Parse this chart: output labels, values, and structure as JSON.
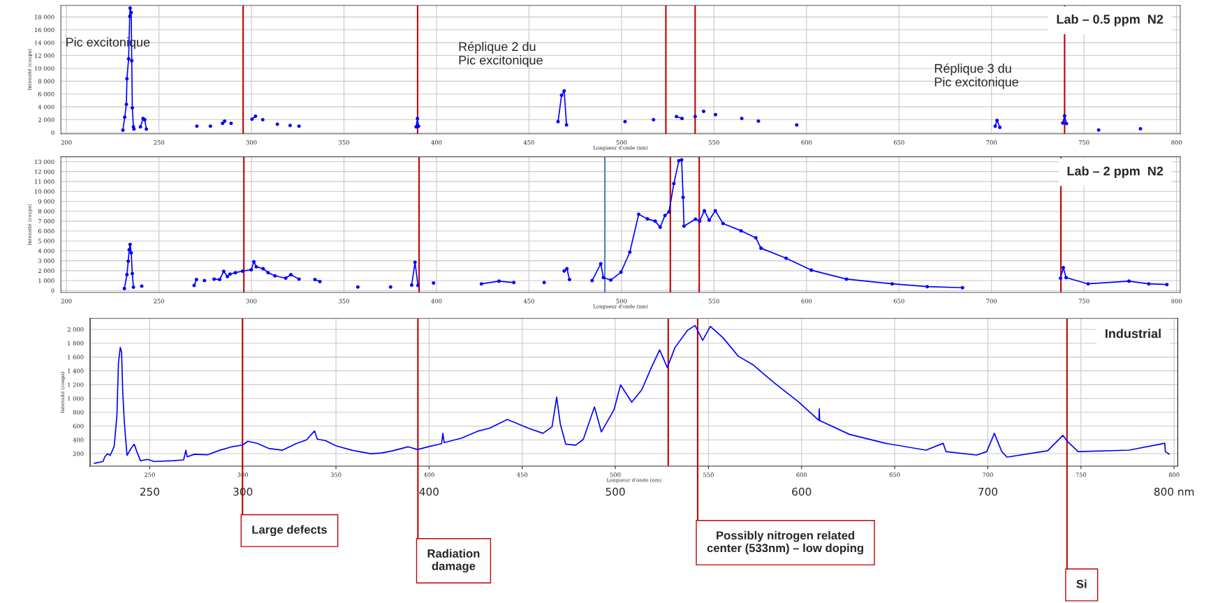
{
  "chart_data": [
    {
      "type": "line",
      "title": "Lab – 0.5 ppm  N2",
      "xlabel": "Longueur d'onde (nm)",
      "ylabel": "Intensité (coups)",
      "marker": "circle",
      "line_style": "solid",
      "grid": true,
      "legend": false,
      "annotations": [
        "Pic excitonique",
        "Réplique 2 du Pic excitonique",
        "Réplique 3 du Pic excitonique"
      ],
      "xlim": [
        197,
        802
      ],
      "ylim": [
        -200,
        19800
      ],
      "xticks": [
        200,
        250,
        300,
        350,
        400,
        450,
        500,
        550,
        600,
        650,
        700,
        750,
        800
      ],
      "yticks": [
        0,
        {
          "value": 2000,
          "label": "2 000"
        },
        {
          "value": 4000,
          "label": "4 000"
        },
        {
          "value": 6000,
          "label": "6 000"
        },
        {
          "value": 8000,
          "label": "8 000"
        },
        {
          "value": 10000,
          "label": "10 000"
        },
        {
          "value": 12000,
          "label": "12 000"
        },
        {
          "value": 14000,
          "label": "14 000"
        },
        {
          "value": 16000,
          "label": "16 000"
        },
        {
          "value": 18000,
          "label": "18 000"
        }
      ],
      "ref_lines": [
        {
          "axis": "x",
          "value": 295.5,
          "color": "#c00000"
        },
        {
          "axis": "x",
          "value": 389.8,
          "color": "#c00000"
        },
        {
          "axis": "x",
          "value": 524,
          "color": "#c00000"
        },
        {
          "axis": "x",
          "value": 539.8,
          "color": "#c00000"
        },
        {
          "axis": "x",
          "value": 739.5,
          "color": "#c00000"
        }
      ],
      "series": [
        {
          "color": "#0000ff",
          "x": [
            230.5,
            231.5,
            232.4,
            232.7,
            233.6,
            234.2,
            234.4,
            235,
            235.3,
            235.6,
            236.2,
            236.5,
            238,
            240,
            241.4,
            242.3,
            243.2,
            250,
            270.5,
            274,
            277.8,
            281,
            284.4,
            285,
            285.5,
            287,
            289,
            295,
            300.3,
            302.2,
            304,
            306.1,
            310,
            314,
            317,
            320.9,
            323,
            325.7,
            350,
            389,
            389.7,
            390.3,
            420,
            465.7,
            467.6,
            469,
            470.3,
            485,
            501.9,
            510,
            517.3,
            525,
            529.7,
            532.7,
            536,
            539.8,
            542,
            544.4,
            547,
            550.8,
            560,
            565,
            570,
            574,
            585,
            594.7,
            650,
            702,
            703,
            704.5,
            720,
            738.5,
            739.5,
            740.5,
            750,
            757.9,
            770,
            780.5
          ],
          "values": [
            370,
            2400,
            4400,
            8400,
            11500,
            18100,
            19400,
            18700,
            11200,
            3850,
            900,
            550,
            null,
            900,
            2200,
            2000,
            550,
            null,
            1000,
            null,
            1000,
            null,
            1450,
            null,
            1800,
            null,
            1450,
            null,
            2100,
            2550,
            null,
            2000,
            null,
            1300,
            null,
            1100,
            null,
            1000,
            null,
            900,
            2200,
            1000,
            null,
            1700,
            5800,
            6500,
            1200,
            null,
            1700,
            null,
            2000,
            null,
            2500,
            2200,
            null,
            2500,
            null,
            3300,
            null,
            2800,
            null,
            2200,
            null,
            1800,
            null,
            1200,
            null,
            1000,
            1900,
            800,
            null,
            1500,
            2600,
            1400,
            null,
            400,
            null,
            600
          ]
        }
      ]
    },
    {
      "type": "line",
      "title": "Lab – 2 ppm  N2",
      "xlabel": "Longueur d'onde (nm)",
      "ylabel": "Intensité (coups)",
      "marker": "circle",
      "line_style": "solid",
      "grid": true,
      "legend": false,
      "xlim": [
        197,
        802
      ],
      "ylim": [
        -200,
        13500
      ],
      "xticks": [
        200,
        250,
        300,
        350,
        400,
        450,
        500,
        550,
        600,
        650,
        700,
        750,
        800
      ],
      "yticks": [
        0,
        {
          "value": 1000,
          "label": "1 000"
        },
        {
          "value": 2000,
          "label": "2 000"
        },
        {
          "value": 3000,
          "label": "3 000"
        },
        {
          "value": 4000,
          "label": "4 000"
        },
        {
          "value": 5000,
          "label": "5 000"
        },
        {
          "value": 6000,
          "label": "6 000"
        },
        {
          "value": 7000,
          "label": "7 000"
        },
        {
          "value": 8000,
          "label": "8 000"
        },
        {
          "value": 9000,
          "label": "9 000"
        },
        {
          "value": 10000,
          "label": "10 000"
        },
        {
          "value": 11000,
          "label": "11 000"
        },
        {
          "value": 12000,
          "label": "12 000"
        },
        {
          "value": 13000,
          "label": "13 000"
        }
      ],
      "ref_lines": [
        {
          "axis": "x",
          "value": 295.9,
          "color": "#c00000"
        },
        {
          "axis": "x",
          "value": 390.6,
          "color": "#c00000"
        },
        {
          "axis": "x",
          "value": 491,
          "color": "#4a7ebb"
        },
        {
          "axis": "x",
          "value": 526.4,
          "color": "#c00000"
        },
        {
          "axis": "x",
          "value": 542,
          "color": "#c00000"
        },
        {
          "axis": "x",
          "value": 737.5,
          "color": "#c00000"
        }
      ],
      "series": [
        {
          "color": "#0000ff",
          "x": [
            231.3,
            232.7,
            233.4,
            233.9,
            234.4,
            235,
            235.6,
            236.2,
            238,
            240.7,
            250,
            269,
            270.3,
            272,
            274.6,
            277,
            279.8,
            282.8,
            285,
            287,
            288.4,
            291.3,
            295.2,
            299.9,
            301.3,
            302.6,
            306.3,
            309,
            312.7,
            318.5,
            321.3,
            325.7,
            330,
            334.3,
            337,
            345,
            357.5,
            365,
            375.2,
            380,
            386.6,
            388.4,
            390,
            395,
            398.4,
            410,
            424.3,
            433.8,
            441.8,
            450,
            458.2,
            465,
            469,
            470.5,
            471.9,
            478,
            484.1,
            488.8,
            490.2,
            494.2,
            499.7,
            504.5,
            509.3,
            514,
            518.2,
            520.9,
            523.5,
            525.7,
            528.3,
            531,
            532.5,
            533.3,
            533.8,
            540,
            542.2,
            544.8,
            547.4,
            550.7,
            554.9,
            564.6,
            572.6,
            575.4,
            589,
            602.6,
            621.6,
            646.3,
            665.3,
            684.3,
            710,
            737.3,
            738.8,
            740.3,
            752.2,
            774.3,
            785,
            794.8
          ],
          "values": [
            200,
            1600,
            2950,
            4100,
            4650,
            3800,
            1700,
            330,
            null,
            430,
            null,
            500,
            1100,
            null,
            1000,
            null,
            1150,
            1100,
            1940,
            1400,
            1650,
            1800,
            1950,
            2100,
            2900,
            2400,
            2200,
            1800,
            1480,
            1250,
            1600,
            1150,
            null,
            1100,
            900,
            null,
            350,
            null,
            350,
            null,
            550,
            2850,
            500,
            null,
            760,
            null,
            670,
            940,
            800,
            null,
            800,
            null,
            1970,
            2200,
            1100,
            null,
            1000,
            2700,
            1300,
            1050,
            1840,
            3870,
            7700,
            7230,
            7000,
            6400,
            7570,
            7950,
            10800,
            13100,
            13200,
            9400,
            6500,
            7200,
            7000,
            8050,
            7100,
            8050,
            6760,
            6030,
            5320,
            4270,
            3250,
            2050,
            1150,
            670,
            390,
            280,
            null,
            1250,
            2300,
            1300,
            670,
            940,
            670,
            600
          ]
        }
      ]
    },
    {
      "type": "line",
      "title": "Industrial",
      "xlabel": "Longueur d'onde (nm)",
      "ylabel": "Intensité (coups)",
      "marker": "none",
      "line_style": "solid",
      "grid": true,
      "legend": false,
      "xlim": [
        218,
        802
      ],
      "ylim": [
        20,
        2160
      ],
      "xticks": [
        250,
        300,
        350,
        400,
        450,
        500,
        550,
        600,
        650,
        700,
        750,
        800
      ],
      "x2lim": [
        218,
        802
      ],
      "x2ticks": [
        250,
        300,
        400,
        500,
        600,
        700,
        {
          "value": 800,
          "label": "800 nm"
        }
      ],
      "yticks": [
        200,
        400,
        600,
        800,
        {
          "value": 1000,
          "label": "1 000"
        },
        {
          "value": 1200,
          "label": "1 200"
        },
        {
          "value": 1400,
          "label": "1 400"
        },
        {
          "value": 1600,
          "label": "1 600"
        },
        {
          "value": 1800,
          "label": "1 800"
        },
        {
          "value": 2000,
          "label": "2 000"
        }
      ],
      "ref_lines": [
        {
          "axis": "x",
          "value": 299.8,
          "label": "Large defects",
          "color": "#c00000"
        },
        {
          "axis": "x",
          "value": 394,
          "label": "Radiation damage",
          "color": "#c00000"
        },
        {
          "axis": "x",
          "value": 528.4,
          "color": "#c00000"
        },
        {
          "axis": "x",
          "value": 544.2,
          "label": "Possibly nitrogen related center (533nm) – low doping",
          "color": "#c00000"
        },
        {
          "axis": "x",
          "value": 742.5,
          "label": "Si",
          "color": "#c00000"
        }
      ],
      "series": [
        {
          "color": "#0000ff",
          "x": [
            220.2,
            224.9,
            225.9,
            227.3,
            228.8,
            230.9,
            232.4,
            233.2,
            234.2,
            234.9,
            235.5,
            236.4,
            237.8,
            240.2,
            241.7,
            243.1,
            245,
            248.9,
            252.4,
            262.5,
            268.2,
            269.4,
            270.1,
            274,
            281.1,
            287.6,
            294,
            299.8,
            302.7,
            307.7,
            314.1,
            321.3,
            328.5,
            334.2,
            338.5,
            340,
            344.3,
            350,
            358.6,
            368.7,
            374.4,
            380.1,
            388.8,
            393.8,
            400.2,
            406.7,
            407.4,
            408.1,
            417.4,
            426,
            432.5,
            442,
            453,
            461.1,
            466,
            468.5,
            470.5,
            473.4,
            478.7,
            482.8,
            488.8,
            492.5,
            499.3,
            502.8,
            508.8,
            514.2,
            519,
            523.8,
            527.9,
            532,
            538.8,
            542.8,
            546.9,
            551,
            557.8,
            565.9,
            574.1,
            585,
            598.5,
            609.3,
            609.5,
            609.7,
            625.7,
            645,
            666.8,
            676,
            677.6,
            694,
            699.4,
            703.5,
            707.5,
            710.3,
            732.1,
            740.3,
            742.9,
            748.5,
            775.8,
            795,
            795.3,
            797.4
          ],
          "values": [
            60,
            87,
            155,
            200,
            175,
            306,
            760,
            1515,
            1740,
            1670,
            1100,
            646,
            175,
            287,
            336,
            230,
            98,
            117,
            87,
            98,
            110,
            250,
            155,
            192,
            185,
            250,
            300,
            325,
            380,
            350,
            275,
            250,
            345,
            400,
            530,
            410,
            390,
            315,
            250,
            200,
            210,
            240,
            300,
            260,
            305,
            345,
            495,
            360,
            425,
            525,
            570,
            695,
            573,
            495,
            588,
            1019,
            622,
            338,
            323,
            408,
            878,
            515,
            838,
            1197,
            947,
            1126,
            1428,
            1704,
            1448,
            1736,
            1989,
            2057,
            1843,
            2044,
            1880,
            1615,
            1484,
            1234,
            947,
            681,
            850,
            681,
            480,
            351,
            251,
            351,
            229,
            180,
            230,
            495,
            230,
            150,
            243,
            465,
            373,
            230,
            251,
            351,
            230,
            193
          ]
        }
      ]
    }
  ]
}
